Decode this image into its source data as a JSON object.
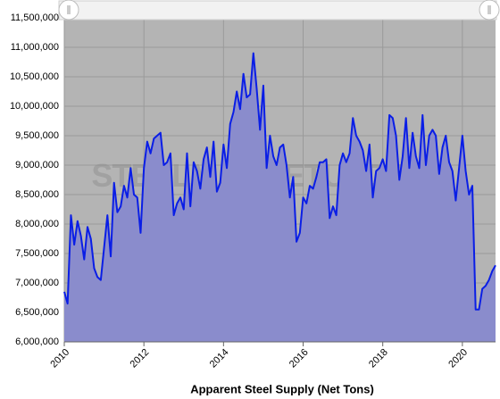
{
  "chart_data": {
    "type": "area",
    "x_label": "Apparent Steel Supply (Net Tons)",
    "watermark": "STEELMARKETUPDATE",
    "plot_background": "#b4b4b4",
    "line_color": "#0a1ee6",
    "fill_color": "#8a8ccc",
    "grid": true,
    "xlim": [
      2010,
      2020.833
    ],
    "xticks": [
      2010,
      2012,
      2014,
      2016,
      2018,
      2020
    ],
    "ylim": [
      6000000,
      11500000
    ],
    "yticks": [
      {
        "value": 6000000,
        "label": "6,000,000"
      },
      {
        "value": 6500000,
        "label": "6,500,000"
      },
      {
        "value": 7000000,
        "label": "7,000,000"
      },
      {
        "value": 7500000,
        "label": "7,500,000"
      },
      {
        "value": 8000000,
        "label": "8,000,000"
      },
      {
        "value": 8500000,
        "label": "8,500,000"
      },
      {
        "value": 9000000,
        "label": "9,000,000"
      },
      {
        "value": 9500000,
        "label": "9,500,000"
      },
      {
        "value": 10000000,
        "label": "10,000,000"
      },
      {
        "value": 10500000,
        "label": "10,500,000"
      },
      {
        "value": 11000000,
        "label": "11,000,000"
      },
      {
        "value": 11500000,
        "label": "11,500,000"
      }
    ],
    "x": [
      2010,
      2010.083,
      2010.167,
      2010.25,
      2010.333,
      2010.417,
      2010.5,
      2010.583,
      2010.667,
      2010.75,
      2010.833,
      2010.917,
      2011,
      2011.083,
      2011.167,
      2011.25,
      2011.333,
      2011.417,
      2011.5,
      2011.583,
      2011.667,
      2011.75,
      2011.833,
      2011.917,
      2012,
      2012.083,
      2012.167,
      2012.25,
      2012.333,
      2012.417,
      2012.5,
      2012.583,
      2012.667,
      2012.75,
      2012.833,
      2012.917,
      2013,
      2013.083,
      2013.167,
      2013.25,
      2013.333,
      2013.417,
      2013.5,
      2013.583,
      2013.667,
      2013.75,
      2013.833,
      2013.917,
      2014,
      2014.083,
      2014.167,
      2014.25,
      2014.333,
      2014.417,
      2014.5,
      2014.583,
      2014.667,
      2014.75,
      2014.833,
      2014.917,
      2015,
      2015.083,
      2015.167,
      2015.25,
      2015.333,
      2015.417,
      2015.5,
      2015.583,
      2015.667,
      2015.75,
      2015.833,
      2015.917,
      2016,
      2016.083,
      2016.167,
      2016.25,
      2016.333,
      2016.417,
      2016.5,
      2016.583,
      2016.667,
      2016.75,
      2016.833,
      2016.917,
      2017,
      2017.083,
      2017.167,
      2017.25,
      2017.333,
      2017.417,
      2017.5,
      2017.583,
      2017.667,
      2017.75,
      2017.833,
      2017.917,
      2018,
      2018.083,
      2018.167,
      2018.25,
      2018.333,
      2018.417,
      2018.5,
      2018.583,
      2018.667,
      2018.75,
      2018.833,
      2018.917,
      2019,
      2019.083,
      2019.167,
      2019.25,
      2019.333,
      2019.417,
      2019.5,
      2019.583,
      2019.667,
      2019.75,
      2019.833,
      2019.917,
      2020,
      2020.083,
      2020.167,
      2020.25,
      2020.333,
      2020.417,
      2020.5,
      2020.583,
      2020.667,
      2020.75,
      2020.833
    ],
    "values": [
      6850000,
      6650000,
      8150000,
      7650000,
      8050000,
      7800000,
      7400000,
      7950000,
      7750000,
      7250000,
      7100000,
      7050000,
      7600000,
      8150000,
      7450000,
      8700000,
      8200000,
      8300000,
      8650000,
      8450000,
      8950000,
      8500000,
      8450000,
      7850000,
      8950000,
      9400000,
      9200000,
      9450000,
      9500000,
      9550000,
      9000000,
      9050000,
      9200000,
      8150000,
      8350000,
      8450000,
      8250000,
      9200000,
      8300000,
      9050000,
      8900000,
      8600000,
      9100000,
      9300000,
      8800000,
      9400000,
      8550000,
      8700000,
      9350000,
      8950000,
      9700000,
      9900000,
      10250000,
      9950000,
      10550000,
      10150000,
      10200000,
      10900000,
      10300000,
      9600000,
      10350000,
      8950000,
      9500000,
      9150000,
      9000000,
      9300000,
      9350000,
      9000000,
      8450000,
      8800000,
      7700000,
      7850000,
      8450000,
      8350000,
      8650000,
      8600000,
      8800000,
      9050000,
      9050000,
      9100000,
      8100000,
      8300000,
      8150000,
      9000000,
      9200000,
      9050000,
      9200000,
      9800000,
      9500000,
      9400000,
      9250000,
      8900000,
      9350000,
      8450000,
      8900000,
      8950000,
      9100000,
      8900000,
      9850000,
      9800000,
      9500000,
      8750000,
      9150000,
      9800000,
      8950000,
      9550000,
      9150000,
      8950000,
      9850000,
      9000000,
      9500000,
      9600000,
      9500000,
      8850000,
      9300000,
      9500000,
      9050000,
      8900000,
      8400000,
      8950000,
      9500000,
      8900000,
      8500000,
      8650000,
      6550000,
      6550000,
      6900000,
      6950000,
      7050000,
      7200000,
      7300000
    ]
  }
}
